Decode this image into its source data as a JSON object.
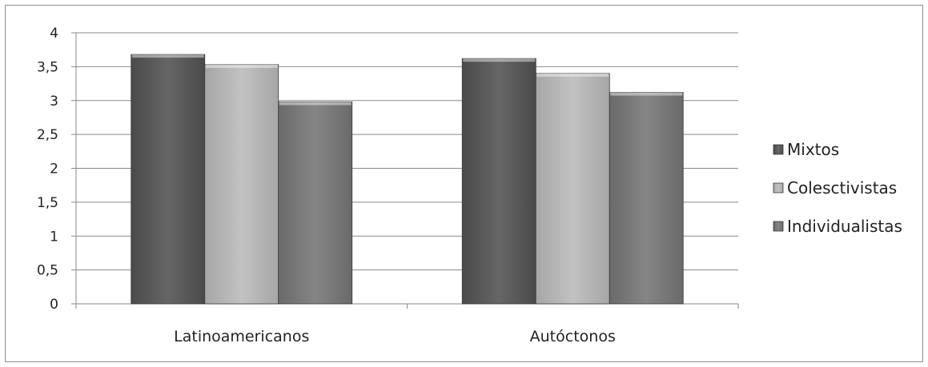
{
  "chart_data": {
    "type": "bar",
    "categories": [
      "Latinoamericanos",
      "Autóctonos"
    ],
    "series": [
      {
        "name": "Mixtos",
        "values": [
          3.68,
          3.62
        ],
        "color": "#5e5e5e"
      },
      {
        "name": "Colesctivistas",
        "values": [
          3.53,
          3.4
        ],
        "color": "#b5b5b5"
      },
      {
        "name": "Individualistas",
        "values": [
          2.98,
          3.12
        ],
        "color": "#7c7c7c"
      }
    ],
    "ylim": [
      0,
      4
    ],
    "yticks": [
      "0",
      "0,5",
      "1",
      "1,5",
      "2",
      "2,5",
      "3",
      "3,5",
      "4"
    ],
    "grid": true,
    "legend_position": "right"
  }
}
